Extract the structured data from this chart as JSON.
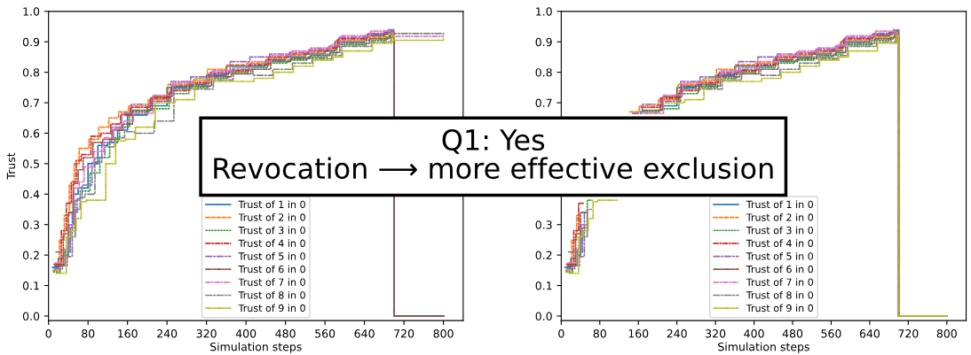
{
  "chart_data": [
    {
      "type": "step",
      "xlabel": "Simulation steps",
      "ylabel": "Trust",
      "xlim": [
        0,
        840
      ],
      "ylim": [
        -0.015,
        1.0
      ],
      "xticks": [
        0,
        80,
        160,
        240,
        320,
        400,
        480,
        560,
        640,
        720,
        800
      ],
      "yticks": [
        {
          "value": 0,
          "label": "0.0"
        },
        {
          "value": 0.1,
          "label": "0.1"
        },
        {
          "value": 0.2,
          "label": "0.2"
        },
        {
          "value": 0.3,
          "label": "0.3"
        },
        {
          "value": 0.4,
          "label": "0.4"
        },
        {
          "value": 0.5,
          "label": "0.5"
        },
        {
          "value": 0.6,
          "label": "0.6"
        },
        {
          "value": 0.7,
          "label": "0.7"
        },
        {
          "value": 0.8,
          "label": "0.8"
        },
        {
          "value": 0.9,
          "label": "0.9"
        },
        {
          "value": 1,
          "label": "1.0"
        }
      ],
      "grid": false,
      "legend": "bottom",
      "annotations": [
        "Q1: Yes\nRevocation ⟶ more effective exclusion"
      ],
      "series": [
        {
          "name": "Trust of 1 in 0",
          "color": "#1f77b4",
          "line_style": "solid",
          "x": [
            8,
            20,
            30,
            40,
            50,
            60,
            80,
            100,
            120,
            140,
            160,
            200,
            240,
            280,
            320,
            360,
            400,
            440,
            480,
            520,
            560,
            580,
            640,
            680,
            700,
            800
          ],
          "values": [
            0.16,
            0.19,
            0.2,
            0.3,
            0.4,
            0.42,
            0.5,
            0.56,
            0.57,
            0.61,
            0.66,
            0.69,
            0.75,
            0.76,
            0.79,
            0.82,
            0.82,
            0.84,
            0.85,
            0.86,
            0.87,
            0.9,
            0.92,
            0.93,
            0,
            0
          ]
        },
        {
          "name": "Trust of 2 in 0",
          "color": "#ff7f0e",
          "line_style": "dashed",
          "x": [
            9,
            22,
            32,
            42,
            52,
            62,
            82,
            102,
            122,
            142,
            162,
            202,
            242,
            282,
            322,
            362,
            402,
            442,
            482,
            522,
            562,
            582,
            642,
            682,
            700,
            800
          ],
          "values": [
            0.15,
            0.25,
            0.33,
            0.43,
            0.5,
            0.55,
            0.58,
            0.62,
            0.65,
            0.67,
            0.69,
            0.71,
            0.76,
            0.77,
            0.81,
            0.825,
            0.83,
            0.845,
            0.855,
            0.865,
            0.875,
            0.905,
            0.915,
            0.925,
            0,
            0
          ]
        },
        {
          "name": "Trust of 3 in 0",
          "color": "#2ca02c",
          "line_style": "dotted",
          "x": [
            10,
            24,
            34,
            44,
            54,
            64,
            84,
            104,
            124,
            144,
            164,
            204,
            244,
            284,
            324,
            364,
            404,
            444,
            484,
            524,
            564,
            584,
            644,
            684,
            700,
            800
          ],
          "values": [
            0.145,
            0.17,
            0.22,
            0.29,
            0.38,
            0.41,
            0.47,
            0.52,
            0.58,
            0.62,
            0.67,
            0.68,
            0.73,
            0.75,
            0.78,
            0.8,
            0.815,
            0.83,
            0.84,
            0.85,
            0.86,
            0.89,
            0.905,
            0.915,
            0,
            0
          ]
        },
        {
          "name": "Trust of 4 in 0",
          "color": "#d62728",
          "line_style": "dashdot",
          "x": [
            11,
            26,
            36,
            46,
            56,
            66,
            86,
            106,
            126,
            146,
            166,
            206,
            246,
            286,
            326,
            366,
            406,
            446,
            486,
            526,
            566,
            586,
            646,
            686,
            700,
            800
          ],
          "values": [
            0.17,
            0.28,
            0.37,
            0.44,
            0.51,
            0.53,
            0.59,
            0.6,
            0.63,
            0.66,
            0.685,
            0.715,
            0.74,
            0.765,
            0.795,
            0.805,
            0.825,
            0.85,
            0.86,
            0.87,
            0.88,
            0.91,
            0.925,
            0.935,
            0,
            0
          ]
        },
        {
          "name": "Trust of 5 in 0",
          "color": "#9467bd",
          "line_style": "longdashdot",
          "x": [
            12,
            28,
            38,
            48,
            58,
            68,
            88,
            108,
            128,
            148,
            168,
            208,
            248,
            288,
            328,
            368,
            408,
            448,
            488,
            528,
            568,
            588,
            648,
            688,
            700,
            800
          ],
          "values": [
            0.155,
            0.165,
            0.195,
            0.34,
            0.385,
            0.43,
            0.505,
            0.57,
            0.62,
            0.665,
            0.695,
            0.705,
            0.77,
            0.785,
            0.8,
            0.835,
            0.85,
            0.86,
            0.865,
            0.875,
            0.885,
            0.915,
            0.928,
            0.94,
            0,
            0
          ]
        },
        {
          "name": "Trust of 6 in 0",
          "color": "#8c564b",
          "line_style": "dashdotdot",
          "x": [
            13,
            30,
            40,
            50,
            60,
            70,
            90,
            110,
            130,
            150,
            170,
            210,
            250,
            290,
            330,
            370,
            410,
            450,
            490,
            530,
            570,
            590,
            650,
            690,
            700,
            800
          ],
          "values": [
            0.165,
            0.27,
            0.34,
            0.435,
            0.48,
            0.52,
            0.57,
            0.58,
            0.61,
            0.63,
            0.675,
            0.72,
            0.755,
            0.755,
            0.785,
            0.795,
            0.81,
            0.835,
            0.845,
            0.855,
            0.865,
            0.895,
            0.91,
            0.92,
            0,
            0
          ]
        },
        {
          "name": "Trust of 7 in 0",
          "color": "#e377c2",
          "line_style": "dashdot",
          "x": [
            14,
            32,
            42,
            52,
            62,
            72,
            92,
            112,
            132,
            152,
            172,
            212,
            252,
            292,
            332,
            372,
            412,
            452,
            492,
            532,
            572,
            592,
            652,
            692,
            700,
            800
          ],
          "values": [
            0.175,
            0.22,
            0.3,
            0.42,
            0.44,
            0.49,
            0.54,
            0.585,
            0.615,
            0.64,
            0.665,
            0.725,
            0.765,
            0.775,
            0.805,
            0.815,
            0.835,
            0.855,
            0.87,
            0.88,
            0.89,
            0.92,
            0.935,
            0.93,
            0.918,
            0.918
          ]
        },
        {
          "name": "Trust of 8 in 0",
          "color": "#7f7f7f",
          "line_style": "longdashdot",
          "x": [
            15,
            34,
            44,
            54,
            64,
            74,
            94,
            114,
            134,
            154,
            174,
            214,
            254,
            294,
            334,
            374,
            414,
            454,
            494,
            534,
            574,
            594,
            654,
            694,
            700,
            800
          ],
          "values": [
            0.21,
            0.21,
            0.26,
            0.35,
            0.39,
            0.4,
            0.52,
            0.555,
            0.585,
            0.605,
            0.6,
            0.64,
            0.745,
            0.745,
            0.775,
            0.81,
            0.79,
            0.81,
            0.83,
            0.845,
            0.855,
            0.885,
            0.9,
            0.935,
            0.927,
            0.927
          ]
        },
        {
          "name": "Trust of 9 in 0",
          "color": "#bcbd22",
          "line_style": "dashdotdot",
          "x": [
            16,
            36,
            46,
            56,
            66,
            76,
            96,
            116,
            136,
            156,
            176,
            216,
            256,
            296,
            336,
            376,
            416,
            456,
            496,
            536,
            576,
            596,
            656,
            696,
            700,
            800
          ],
          "values": [
            0.14,
            0.26,
            0.28,
            0.32,
            0.375,
            0.38,
            0.38,
            0.5,
            0.575,
            0.58,
            0.62,
            0.7,
            0.71,
            0.78,
            0.77,
            0.77,
            0.78,
            0.8,
            0.82,
            0.84,
            0.85,
            0.87,
            0.895,
            0.92,
            0.905,
            0.909
          ]
        }
      ]
    },
    {
      "type": "step",
      "xlabel": "Simulation steps",
      "xlim": [
        0,
        840
      ],
      "ylim": [
        -0.015,
        1.0
      ],
      "xticks": [
        0,
        80,
        160,
        240,
        320,
        400,
        480,
        560,
        640,
        720,
        800
      ],
      "yticks": [
        {
          "value": 0,
          "label": "0.0"
        },
        {
          "value": 0.1,
          "label": "0.1"
        },
        {
          "value": 0.2,
          "label": "0.2"
        },
        {
          "value": 0.3,
          "label": "0.3"
        },
        {
          "value": 0.4,
          "label": null
        },
        {
          "value": 0.5,
          "label": null
        },
        {
          "value": 0.6,
          "label": null
        },
        {
          "value": 0.7,
          "label": "0.7"
        },
        {
          "value": 0.8,
          "label": "0.8"
        },
        {
          "value": 0.9,
          "label": "0.9"
        },
        {
          "value": 1,
          "label": "1.0"
        }
      ],
      "grid": false,
      "legend": "bottom",
      "series": [
        {
          "name": "Trust of 1 in 0",
          "color": "#1f77b4",
          "line_style": "solid",
          "x": [
            8,
            20,
            30,
            40,
            50,
            60,
            80,
            100,
            120,
            140,
            160,
            200,
            240,
            280,
            320,
            360,
            400,
            440,
            480,
            520,
            560,
            580,
            640,
            680,
            700,
            800
          ],
          "values": [
            0.16,
            0.19,
            0.2,
            0.3,
            null,
            null,
            null,
            null,
            null,
            null,
            null,
            0.69,
            0.75,
            0.76,
            0.79,
            0.82,
            0.82,
            0.84,
            0.85,
            0.86,
            0.87,
            0.9,
            0.92,
            0.93,
            0,
            0
          ]
        },
        {
          "name": "Trust of 2 in 0",
          "color": "#ff7f0e",
          "line_style": "dashed",
          "x": [
            9,
            22,
            32,
            42,
            52,
            62,
            82,
            102,
            122,
            142,
            162,
            202,
            242,
            282,
            322,
            362,
            402,
            442,
            482,
            522,
            562,
            582,
            642,
            682,
            700,
            800
          ],
          "values": [
            0.15,
            0.25,
            0.33,
            null,
            null,
            null,
            null,
            null,
            null,
            0.67,
            0.69,
            0.71,
            0.76,
            0.77,
            0.81,
            0.825,
            0.83,
            0.845,
            0.855,
            0.865,
            0.875,
            0.905,
            0.915,
            0.925,
            0,
            0
          ]
        },
        {
          "name": "Trust of 3 in 0",
          "color": "#2ca02c",
          "line_style": "dotted",
          "x": [
            10,
            24,
            34,
            44,
            54,
            64,
            84,
            104,
            124,
            144,
            164,
            204,
            244,
            284,
            324,
            364,
            404,
            444,
            484,
            524,
            564,
            584,
            644,
            684,
            700,
            800
          ],
          "values": [
            0.145,
            0.17,
            0.22,
            0.29,
            0.38,
            null,
            null,
            null,
            null,
            null,
            0.67,
            0.68,
            0.73,
            0.75,
            0.78,
            0.8,
            0.815,
            0.83,
            0.84,
            0.85,
            0.86,
            0.89,
            0.905,
            0.915,
            0,
            0
          ]
        },
        {
          "name": "Trust of 4 in 0",
          "color": "#d62728",
          "line_style": "dashdot",
          "x": [
            11,
            26,
            36,
            46,
            56,
            66,
            86,
            106,
            126,
            146,
            166,
            206,
            246,
            286,
            326,
            366,
            406,
            446,
            486,
            526,
            566,
            586,
            646,
            686,
            700,
            800
          ],
          "values": [
            0.17,
            0.28,
            0.37,
            null,
            null,
            null,
            null,
            null,
            null,
            null,
            0.685,
            0.715,
            0.74,
            0.765,
            0.795,
            0.805,
            0.825,
            0.85,
            0.86,
            0.87,
            0.88,
            0.91,
            0.925,
            0.935,
            0,
            0
          ]
        },
        {
          "name": "Trust of 5 in 0",
          "color": "#9467bd",
          "line_style": "longdashdot",
          "x": [
            12,
            28,
            38,
            48,
            58,
            68,
            88,
            108,
            128,
            148,
            168,
            208,
            248,
            288,
            328,
            368,
            408,
            448,
            488,
            528,
            568,
            588,
            648,
            688,
            700,
            800
          ],
          "values": [
            0.155,
            0.165,
            0.195,
            0.34,
            null,
            null,
            null,
            null,
            null,
            0.665,
            0.695,
            0.705,
            0.77,
            0.785,
            0.8,
            0.835,
            0.85,
            0.86,
            0.865,
            0.875,
            0.885,
            0.915,
            0.928,
            0.94,
            0,
            0
          ]
        },
        {
          "name": "Trust of 6 in 0",
          "color": "#8c564b",
          "line_style": "dashdotdot",
          "x": [
            13,
            30,
            40,
            50,
            60,
            70,
            90,
            110,
            130,
            150,
            170,
            210,
            250,
            290,
            330,
            370,
            410,
            450,
            490,
            530,
            570,
            590,
            650,
            690,
            700,
            800
          ],
          "values": [
            0.165,
            0.27,
            0.34,
            null,
            null,
            null,
            null,
            null,
            null,
            null,
            0.675,
            0.72,
            0.755,
            0.755,
            0.785,
            0.795,
            0.81,
            0.835,
            0.845,
            0.855,
            0.865,
            0.895,
            0.91,
            0.92,
            0,
            0
          ]
        },
        {
          "name": "Trust of 7 in 0",
          "color": "#e377c2",
          "line_style": "dashdot",
          "x": [
            14,
            32,
            42,
            52,
            62,
            72,
            92,
            112,
            132,
            152,
            172,
            212,
            252,
            292,
            332,
            372,
            412,
            452,
            492,
            532,
            572,
            592,
            652,
            692,
            700,
            800
          ],
          "values": [
            0.175,
            0.22,
            0.3,
            null,
            null,
            null,
            null,
            null,
            null,
            null,
            0.665,
            0.725,
            0.765,
            0.775,
            0.805,
            0.815,
            0.835,
            0.855,
            0.87,
            0.88,
            0.89,
            0.92,
            0.935,
            0.93,
            0,
            0
          ]
        },
        {
          "name": "Trust of 8 in 0",
          "color": "#7f7f7f",
          "line_style": "longdashdot",
          "x": [
            15,
            34,
            44,
            54,
            64,
            74,
            94,
            114,
            134,
            154,
            174,
            214,
            254,
            294,
            334,
            374,
            414,
            454,
            494,
            534,
            574,
            594,
            654,
            694,
            700,
            800
          ],
          "values": [
            0.21,
            0.21,
            0.26,
            0.35,
            null,
            null,
            null,
            null,
            null,
            null,
            null,
            null,
            0.745,
            0.745,
            0.775,
            0.81,
            0.79,
            0.81,
            0.83,
            0.845,
            0.855,
            0.885,
            0.9,
            0.935,
            0,
            0
          ]
        },
        {
          "name": "Trust of 9 in 0",
          "color": "#bcbd22",
          "line_style": "dashdotdot",
          "x": [
            16,
            36,
            46,
            56,
            66,
            76,
            96,
            116,
            136,
            156,
            176,
            216,
            256,
            296,
            336,
            376,
            416,
            456,
            496,
            536,
            576,
            596,
            656,
            696,
            700,
            800
          ],
          "values": [
            0.14,
            0.26,
            0.28,
            0.32,
            0.375,
            0.38,
            0.38,
            null,
            null,
            null,
            null,
            0.7,
            0.71,
            0.78,
            0.77,
            0.77,
            0.78,
            0.8,
            0.82,
            0.84,
            0.85,
            0.87,
            0.895,
            0.92,
            0,
            0
          ]
        }
      ]
    }
  ]
}
